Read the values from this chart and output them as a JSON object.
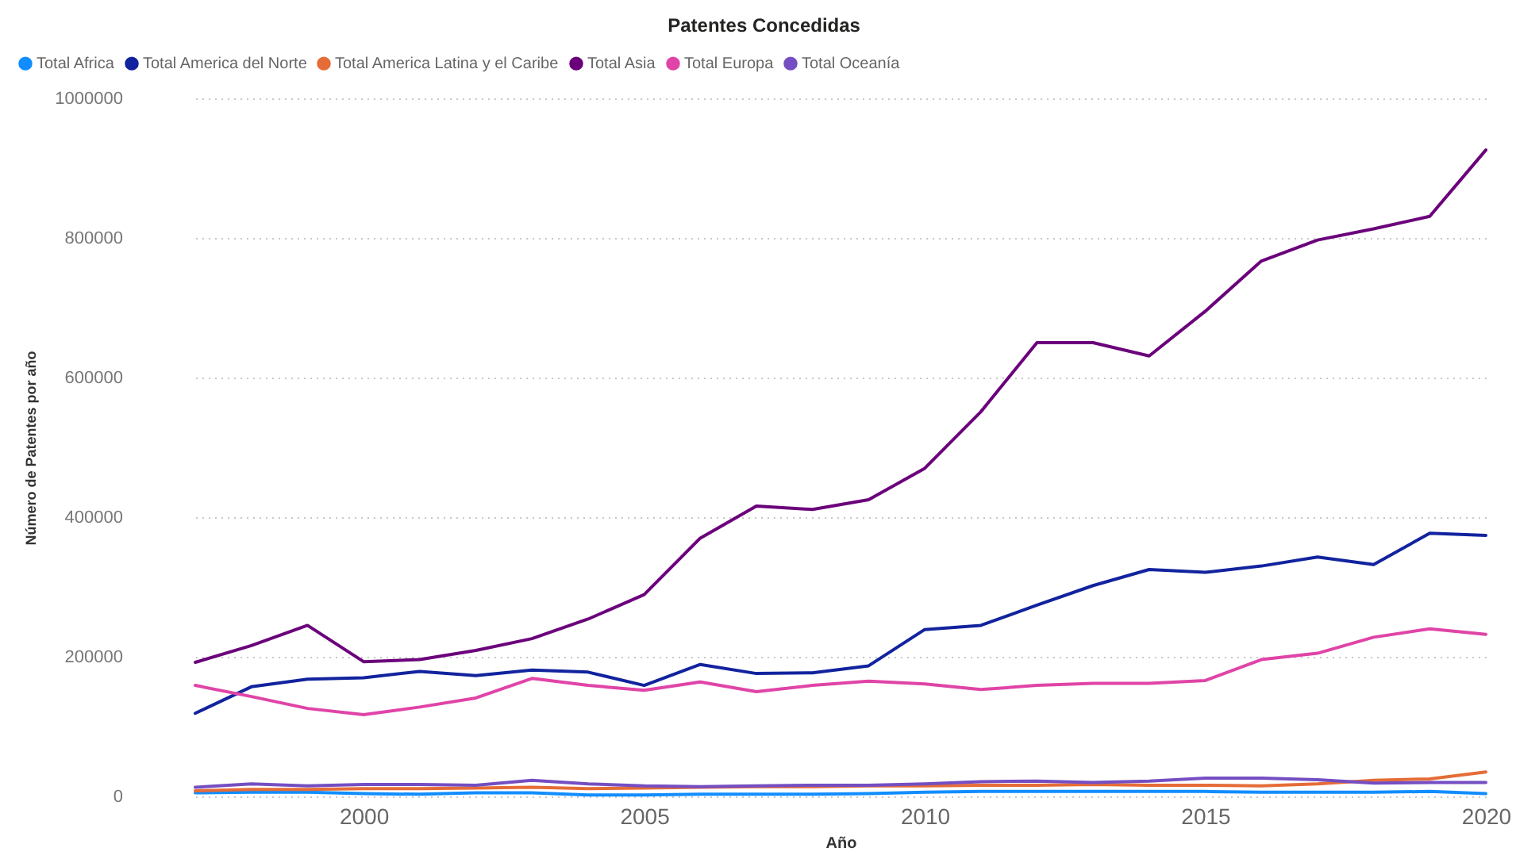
{
  "chart_data": {
    "type": "line",
    "title": "Patentes Concedidas",
    "xlabel": "Año",
    "ylabel": "Número de Patentes por año",
    "x": [
      1997,
      1998,
      1999,
      2000,
      2001,
      2002,
      2003,
      2004,
      2005,
      2006,
      2007,
      2008,
      2009,
      2010,
      2011,
      2012,
      2013,
      2014,
      2015,
      2016,
      2017,
      2018,
      2019,
      2020
    ],
    "series": [
      {
        "name": "Total Africa",
        "color": "#118dff",
        "values": [
          5000,
          6000,
          6000,
          4000,
          3000,
          5000,
          5000,
          2000,
          2000,
          3000,
          3000,
          3000,
          4000,
          6000,
          7000,
          7000,
          7000,
          7000,
          7000,
          6000,
          6000,
          6000,
          7000,
          4000
        ]
      },
      {
        "name": "Total America del Norte",
        "color": "#12239e",
        "values": [
          119000,
          157000,
          168000,
          170000,
          179000,
          173000,
          181000,
          178000,
          159000,
          189000,
          176000,
          177000,
          187000,
          239000,
          245000,
          274000,
          302000,
          325000,
          321000,
          330000,
          343000,
          332000,
          377000,
          374000
        ]
      },
      {
        "name": "Total America Latina y el Caribe",
        "color": "#e66c37",
        "values": [
          8000,
          10000,
          10000,
          11000,
          11000,
          12000,
          13000,
          11000,
          12000,
          13000,
          14000,
          14000,
          15000,
          15000,
          16000,
          16000,
          17000,
          16000,
          16000,
          15000,
          18000,
          23000,
          25000,
          35000
        ]
      },
      {
        "name": "Total Asia",
        "color": "#6b007b",
        "values": [
          192000,
          216000,
          245000,
          193000,
          196000,
          209000,
          226000,
          254000,
          289000,
          370000,
          416000,
          411000,
          425000,
          470000,
          551000,
          650000,
          650000,
          631000,
          695000,
          767000,
          797000,
          813000,
          831000,
          926000
        ]
      },
      {
        "name": "Total Europa",
        "color": "#e044a7",
        "values": [
          159000,
          143000,
          126000,
          117000,
          128000,
          141000,
          169000,
          159000,
          152000,
          164000,
          150000,
          159000,
          165000,
          161000,
          153000,
          159000,
          162000,
          162000,
          166000,
          196000,
          205000,
          228000,
          240000,
          232000
        ]
      },
      {
        "name": "Total Oceanía",
        "color": "#744ec2",
        "values": [
          13000,
          18000,
          15000,
          17000,
          17000,
          16000,
          23000,
          18000,
          15000,
          14000,
          15000,
          16000,
          16000,
          18000,
          21000,
          22000,
          20000,
          22000,
          26000,
          26000,
          24000,
          19000,
          20000,
          20000
        ]
      }
    ],
    "xlim": [
      1997,
      2020
    ],
    "xticks": [
      2000,
      2005,
      2010,
      2015,
      2020
    ],
    "ylim": [
      0,
      1000000
    ],
    "yticks": [
      0,
      200000,
      400000,
      600000,
      800000,
      1000000
    ],
    "grid": "y",
    "legend": "top left"
  }
}
